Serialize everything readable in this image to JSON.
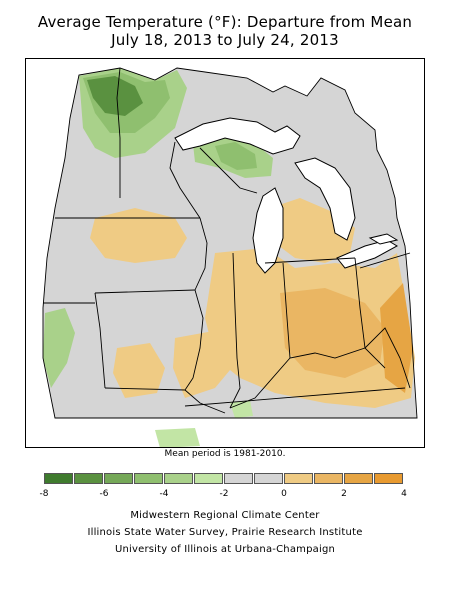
{
  "title_line1": "Average Temperature (°F): Departure from Mean",
  "title_line2": "July 18, 2013 to July 24, 2013",
  "note": "Mean period is 1981-2010.",
  "legend": {
    "colors": [
      "#3f7b2e",
      "#5a9140",
      "#75a858",
      "#8fbf6f",
      "#a9d18a",
      "#c2e5a5",
      "#d5d5d5",
      "#d5d5d5",
      "#efcb84",
      "#eab663",
      "#e6a544",
      "#e89a30"
    ],
    "labels": [
      "-8",
      "-6",
      "-4",
      "-2",
      "0",
      "2",
      "4"
    ]
  },
  "credits": {
    "line1": "Midwestern Regional Climate Center",
    "line2": "Illinois State Water Survey, Prairie Research Institute",
    "line3": "University of Illinois at Urbana-Champaign"
  }
}
